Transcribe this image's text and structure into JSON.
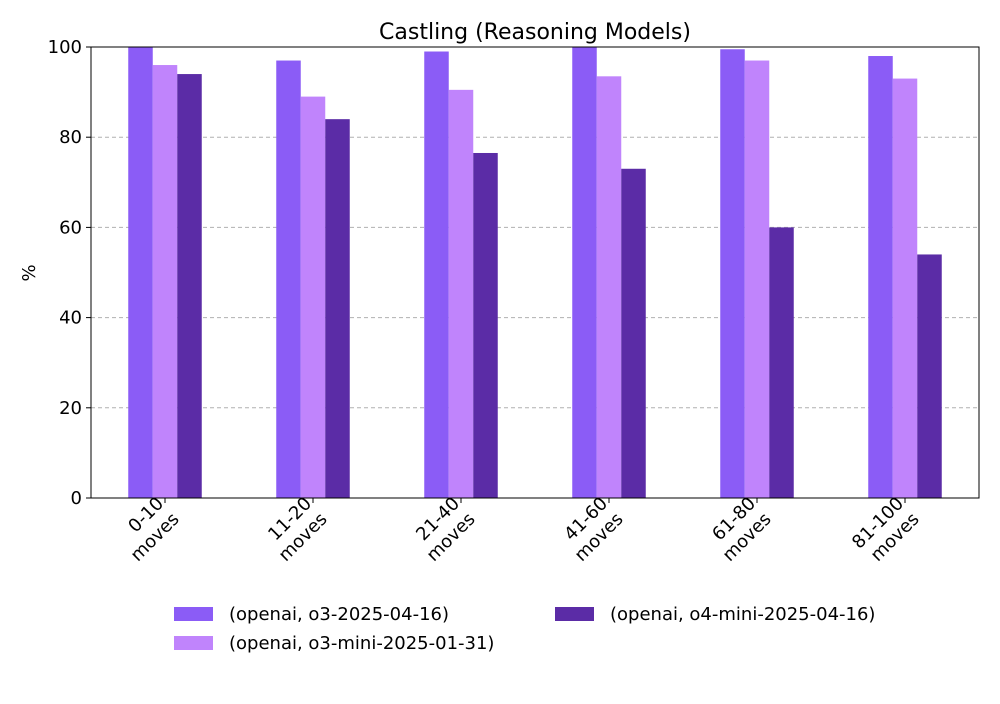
{
  "chart_data": {
    "type": "bar",
    "title": "Castling (Reasoning Models)",
    "xlabel": "",
    "ylabel": "%",
    "ylim": [
      0,
      100
    ],
    "yticks": [
      0,
      20,
      40,
      60,
      80,
      100
    ],
    "grid": true,
    "legend_position": "bottom",
    "categories": [
      [
        "0-10",
        "moves"
      ],
      [
        "11-20",
        "moves"
      ],
      [
        "21-40",
        "moves"
      ],
      [
        "41-60",
        "moves"
      ],
      [
        "61-80",
        "moves"
      ],
      [
        "81-100",
        "moves"
      ]
    ],
    "series": [
      {
        "name": "(openai, o3-2025-04-16)",
        "color": "#8b5cf6",
        "values": [
          100,
          97,
          99,
          100,
          99.5,
          98
        ]
      },
      {
        "name": "(openai, o3-mini-2025-01-31)",
        "color": "#c084fc",
        "values": [
          96,
          89,
          90.5,
          93.5,
          97,
          93
        ]
      },
      {
        "name": "(openai, o4-mini-2025-04-16)",
        "color": "#5b2ca6",
        "values": [
          94,
          84,
          76.5,
          73,
          60,
          54
        ]
      }
    ]
  }
}
